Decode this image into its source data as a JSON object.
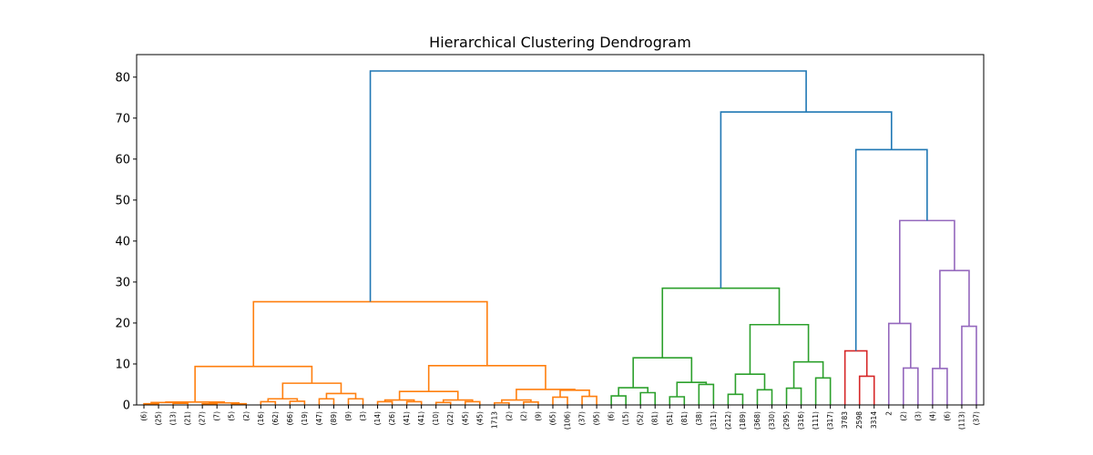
{
  "chart_data": {
    "type": "dendrogram",
    "title": "Hierarchical Clustering Dendrogram",
    "xlabel": "",
    "ylabel": "",
    "ylim": [
      0,
      85.5
    ],
    "yticks": [
      0,
      10,
      20,
      30,
      40,
      50,
      60,
      70,
      80
    ],
    "leaf_labels": [
      "(6)",
      "(25)",
      "(13)",
      "(21)",
      "(27)",
      "(7)",
      "(5)",
      "(2)",
      "(16)",
      "(62)",
      "(66)",
      "(19)",
      "(47)",
      "(89)",
      "(9)",
      "(3)",
      "(14)",
      "(26)",
      "(41)",
      "(41)",
      "(10)",
      "(22)",
      "(45)",
      "(45)",
      "1713",
      "(2)",
      "(2)",
      "(9)",
      "(65)",
      "(106)",
      "(37)",
      "(95)",
      "(6)",
      "(15)",
      "(52)",
      "(81)",
      "(51)",
      "(81)",
      "(38)",
      "(311)",
      "(212)",
      "(189)",
      "(368)",
      "(330)",
      "(295)",
      "(316)",
      "(111)",
      "(317)",
      "3783",
      "2598",
      "3314",
      "2",
      "(2)",
      "(3)",
      "(4)",
      "(6)",
      "(113)",
      "(37)"
    ],
    "colors": {
      "C0": "#1f77b4",
      "C1": "#ff7f0e",
      "C2": "#2ca02c",
      "C3": "#d62728",
      "C4": "#9467bd"
    },
    "links": [
      {
        "left": 0,
        "right": 1,
        "h_left": 0,
        "h_right": 0,
        "h": 0.3,
        "color": "C1"
      },
      {
        "left": 2,
        "right": 3,
        "h_left": 0,
        "h_right": 0,
        "h": 0.4,
        "color": "C1"
      },
      {
        "left": 0.5,
        "right": 2.5,
        "h_left": 0.3,
        "h_right": 0.4,
        "h": 0.6,
        "color": "C1"
      },
      {
        "left": 4,
        "right": 5,
        "h_left": 0,
        "h_right": 0,
        "h": 0.3,
        "color": "C1"
      },
      {
        "left": 6,
        "right": 7,
        "h_left": 0,
        "h_right": 0,
        "h": 0.3,
        "color": "C1"
      },
      {
        "left": 4.5,
        "right": 6.5,
        "h_left": 0.3,
        "h_right": 0.3,
        "h": 0.5,
        "color": "C1"
      },
      {
        "left": 1.5,
        "right": 5.5,
        "h_left": 0.6,
        "h_right": 0.5,
        "h": 0.7,
        "color": "C1"
      },
      {
        "left": 8,
        "right": 9,
        "h_left": 0,
        "h_right": 0,
        "h": 0.8,
        "color": "C1"
      },
      {
        "left": 10,
        "right": 11,
        "h_left": 0,
        "h_right": 0,
        "h": 0.9,
        "color": "C1"
      },
      {
        "left": 8.5,
        "right": 10.5,
        "h_left": 0.8,
        "h_right": 0.9,
        "h": 1.5,
        "color": "C1"
      },
      {
        "left": 12,
        "right": 13,
        "h_left": 0,
        "h_right": 0,
        "h": 1.5,
        "color": "C1"
      },
      {
        "left": 14,
        "right": 15,
        "h_left": 0,
        "h_right": 0,
        "h": 1.5,
        "color": "C1"
      },
      {
        "left": 12.5,
        "right": 14.5,
        "h_left": 1.5,
        "h_right": 1.5,
        "h": 2.8,
        "color": "C1"
      },
      {
        "left": 9.5,
        "right": 13.5,
        "h_left": 1.5,
        "h_right": 2.8,
        "h": 5.3,
        "color": "C1"
      },
      {
        "left": 3.5,
        "right": 11.5,
        "h_left": 0.7,
        "h_right": 5.3,
        "h": 9.4,
        "color": "C1"
      },
      {
        "left": 16,
        "right": 17,
        "h_left": 0,
        "h_right": 0,
        "h": 0.8,
        "color": "C1"
      },
      {
        "left": 18,
        "right": 19,
        "h_left": 0,
        "h_right": 0,
        "h": 0.8,
        "color": "C1"
      },
      {
        "left": 16.5,
        "right": 18.5,
        "h_left": 0.8,
        "h_right": 0.8,
        "h": 1.2,
        "color": "C1"
      },
      {
        "left": 20,
        "right": 21,
        "h_left": 0,
        "h_right": 0,
        "h": 0.6,
        "color": "C1"
      },
      {
        "left": 22,
        "right": 23,
        "h_left": 0,
        "h_right": 0,
        "h": 0.8,
        "color": "C1"
      },
      {
        "left": 20.5,
        "right": 22.5,
        "h_left": 0.6,
        "h_right": 0.8,
        "h": 1.2,
        "color": "C1"
      },
      {
        "left": 17.5,
        "right": 21.5,
        "h_left": 1.2,
        "h_right": 1.2,
        "h": 3.3,
        "color": "C1"
      },
      {
        "left": 24,
        "right": 25,
        "h_left": 0,
        "h_right": 0,
        "h": 0.5,
        "color": "C1"
      },
      {
        "left": 26,
        "right": 27,
        "h_left": 0,
        "h_right": 0,
        "h": 0.7,
        "color": "C1"
      },
      {
        "left": 24.5,
        "right": 26.5,
        "h_left": 0.5,
        "h_right": 0.7,
        "h": 1.2,
        "color": "C1"
      },
      {
        "left": 28,
        "right": 29,
        "h_left": 0,
        "h_right": 0,
        "h": 1.9,
        "color": "C1"
      },
      {
        "left": 30,
        "right": 31,
        "h_left": 0,
        "h_right": 0,
        "h": 2.1,
        "color": "C1"
      },
      {
        "left": 28.5,
        "right": 30.5,
        "h_left": 1.9,
        "h_right": 2.1,
        "h": 3.6,
        "color": "C1"
      },
      {
        "left": 25.5,
        "right": 29.5,
        "h_left": 1.2,
        "h_right": 3.6,
        "h": 3.8,
        "color": "C1"
      },
      {
        "left": 19.5,
        "right": 27.5,
        "h_left": 3.3,
        "h_right": 3.8,
        "h": 9.6,
        "color": "C1"
      },
      {
        "left": 7.5,
        "right": 23.5,
        "h_left": 9.4,
        "h_right": 9.6,
        "h": 25.2,
        "color": "C1"
      },
      {
        "left": 32,
        "right": 33,
        "h_left": 0,
        "h_right": 0,
        "h": 2.2,
        "color": "C2"
      },
      {
        "left": 34,
        "right": 35,
        "h_left": 0,
        "h_right": 0,
        "h": 3.0,
        "color": "C2"
      },
      {
        "left": 32.5,
        "right": 34.5,
        "h_left": 2.2,
        "h_right": 3.0,
        "h": 4.2,
        "color": "C2"
      },
      {
        "left": 36,
        "right": 37,
        "h_left": 0,
        "h_right": 0,
        "h": 2.0,
        "color": "C2"
      },
      {
        "left": 38,
        "right": 39,
        "h_left": 0,
        "h_right": 0,
        "h": 5.0,
        "color": "C2"
      },
      {
        "left": 36.5,
        "right": 38.5,
        "h_left": 2.0,
        "h_right": 5.0,
        "h": 5.5,
        "color": "C2"
      },
      {
        "left": 33.5,
        "right": 37.5,
        "h_left": 4.2,
        "h_right": 5.5,
        "h": 11.5,
        "color": "C2"
      },
      {
        "left": 40,
        "right": 41,
        "h_left": 0,
        "h_right": 0,
        "h": 2.6,
        "color": "C2"
      },
      {
        "left": 42,
        "right": 43,
        "h_left": 0,
        "h_right": 0,
        "h": 3.7,
        "color": "C2"
      },
      {
        "left": 40.5,
        "right": 42.5,
        "h_left": 2.6,
        "h_right": 3.7,
        "h": 7.5,
        "color": "C2"
      },
      {
        "left": 44,
        "right": 45,
        "h_left": 0,
        "h_right": 0,
        "h": 4.1,
        "color": "C2"
      },
      {
        "left": 46,
        "right": 47,
        "h_left": 0,
        "h_right": 0,
        "h": 6.6,
        "color": "C2"
      },
      {
        "left": 44.5,
        "right": 46.5,
        "h_left": 4.1,
        "h_right": 6.6,
        "h": 10.5,
        "color": "C2"
      },
      {
        "left": 41.5,
        "right": 45.5,
        "h_left": 7.5,
        "h_right": 10.5,
        "h": 19.6,
        "color": "C2"
      },
      {
        "left": 35.5,
        "right": 43.5,
        "h_left": 11.5,
        "h_right": 19.6,
        "h": 28.5,
        "color": "C2"
      },
      {
        "left": 49,
        "right": 50,
        "h_left": 0,
        "h_right": 0,
        "h": 7.0,
        "color": "C3"
      },
      {
        "left": 48,
        "right": 49.5,
        "h_left": 0,
        "h_right": 7.0,
        "h": 13.2,
        "color": "C3"
      },
      {
        "left": 52,
        "right": 53,
        "h_left": 0,
        "h_right": 0,
        "h": 9.0,
        "color": "C4"
      },
      {
        "left": 51,
        "right": 52.5,
        "h_left": 0,
        "h_right": 9.0,
        "h": 19.9,
        "color": "C4"
      },
      {
        "left": 54,
        "right": 55,
        "h_left": 0,
        "h_right": 0,
        "h": 8.9,
        "color": "C4"
      },
      {
        "left": 56,
        "right": 57,
        "h_left": 0,
        "h_right": 0,
        "h": 19.2,
        "color": "C4"
      },
      {
        "left": 54.5,
        "right": 56.5,
        "h_left": 8.9,
        "h_right": 19.2,
        "h": 32.8,
        "color": "C4"
      },
      {
        "left": 51.75,
        "right": 55.5,
        "h_left": 19.9,
        "h_right": 32.8,
        "h": 45.0,
        "color": "C4"
      },
      {
        "left": 48.75,
        "right": 53.625,
        "h_left": 13.2,
        "h_right": 45.0,
        "h": 62.3,
        "color": "C0"
      },
      {
        "left": 39.5,
        "right": 51.1875,
        "h_left": 28.5,
        "h_right": 62.3,
        "h": 71.5,
        "color": "C0"
      },
      {
        "left": 15.5,
        "right": 45.34375,
        "h_left": 25.2,
        "h_right": 71.5,
        "h": 81.5,
        "color": "C0"
      }
    ]
  }
}
